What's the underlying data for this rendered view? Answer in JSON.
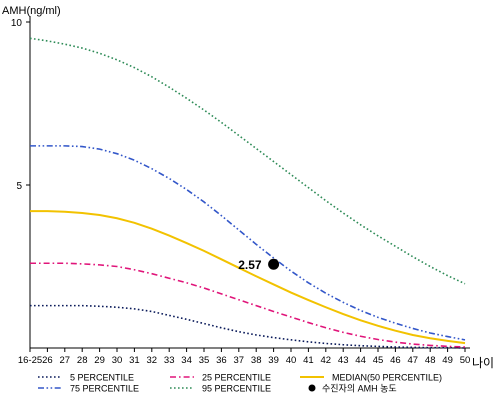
{
  "chart_data": {
    "type": "line",
    "ylabel": "AMH(ng/ml)",
    "xlabel": "나이",
    "ylim": [
      0,
      10
    ],
    "yticks": [
      5,
      10
    ],
    "categories": [
      "16-25",
      "26",
      "27",
      "28",
      "29",
      "30",
      "31",
      "32",
      "33",
      "34",
      "35",
      "36",
      "37",
      "38",
      "39",
      "40",
      "41",
      "42",
      "43",
      "44",
      "45",
      "46",
      "47",
      "48",
      "49",
      "50"
    ],
    "series": [
      {
        "name": "5 PERCENTILE",
        "color": "#0a1a5a",
        "style": "dotted",
        "values": [
          1.3,
          1.3,
          1.3,
          1.3,
          1.28,
          1.25,
          1.2,
          1.12,
          1.0,
          0.88,
          0.75,
          0.62,
          0.5,
          0.4,
          0.32,
          0.25,
          0.19,
          0.14,
          0.1,
          0.07,
          0.05,
          0.03,
          0.02,
          0.01,
          0.01,
          0.0
        ]
      },
      {
        "name": "25 PERCENTILE",
        "color": "#e0157a",
        "style": "dashdot",
        "values": [
          2.6,
          2.6,
          2.6,
          2.58,
          2.55,
          2.5,
          2.4,
          2.28,
          2.14,
          2.0,
          1.84,
          1.66,
          1.48,
          1.3,
          1.12,
          0.95,
          0.78,
          0.62,
          0.48,
          0.36,
          0.26,
          0.18,
          0.12,
          0.08,
          0.05,
          0.03
        ]
      },
      {
        "name": "MEDIAN(50 PERCENTILE)",
        "color": "#f2c200",
        "style": "solid",
        "values": [
          4.2,
          4.2,
          4.18,
          4.14,
          4.08,
          3.98,
          3.84,
          3.66,
          3.45,
          3.22,
          2.98,
          2.72,
          2.46,
          2.2,
          1.95,
          1.7,
          1.47,
          1.25,
          1.04,
          0.85,
          0.68,
          0.53,
          0.4,
          0.3,
          0.22,
          0.15
        ]
      },
      {
        "name": "75 PERCENTILE",
        "color": "#3357c9",
        "style": "dashdotdot",
        "values": [
          6.2,
          6.2,
          6.2,
          6.18,
          6.1,
          5.96,
          5.76,
          5.5,
          5.2,
          4.86,
          4.48,
          4.06,
          3.62,
          3.18,
          2.76,
          2.36,
          2.0,
          1.68,
          1.4,
          1.15,
          0.94,
          0.76,
          0.6,
          0.46,
          0.35,
          0.25
        ]
      },
      {
        "name": "95 PERCENTILE",
        "color": "#2e8b57",
        "style": "dotted",
        "values": [
          9.5,
          9.42,
          9.32,
          9.2,
          9.04,
          8.84,
          8.6,
          8.32,
          8.0,
          7.66,
          7.3,
          6.92,
          6.52,
          6.12,
          5.72,
          5.32,
          4.92,
          4.52,
          4.14,
          3.78,
          3.44,
          3.12,
          2.8,
          2.5,
          2.22,
          1.97
        ]
      }
    ],
    "point": {
      "name": "수진자의 AMH 농도",
      "x": "39",
      "y": 2.57,
      "label": "2.57",
      "color": "#000000"
    },
    "legend_position": "bottom"
  }
}
